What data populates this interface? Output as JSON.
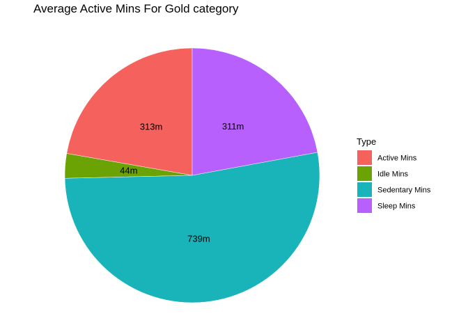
{
  "chart_data": {
    "type": "pie",
    "title": "Average Active Mins For Gold category",
    "categories": [
      "Active Mins",
      "Idle Mins",
      "Sedentary Mins",
      "Sleep Mins"
    ],
    "values": [
      313,
      44,
      739,
      311
    ],
    "data_labels": [
      "313m",
      "44m",
      "739m",
      "311m"
    ],
    "colors": [
      "#F8766D",
      "#7CAE00",
      "#00BFC4",
      "#C77CFF"
    ],
    "slice_colors": [
      "#F5615C",
      "#6BA305",
      "#18B4B9",
      "#B760FE"
    ],
    "legend": {
      "title": "Type",
      "entries": [
        "Active Mins",
        "Idle Mins",
        "Sedentary Mins",
        "Sleep Mins"
      ],
      "placement": "right"
    },
    "grid": false,
    "start_angle_deg": 0,
    "direction": "counterclockwise"
  }
}
